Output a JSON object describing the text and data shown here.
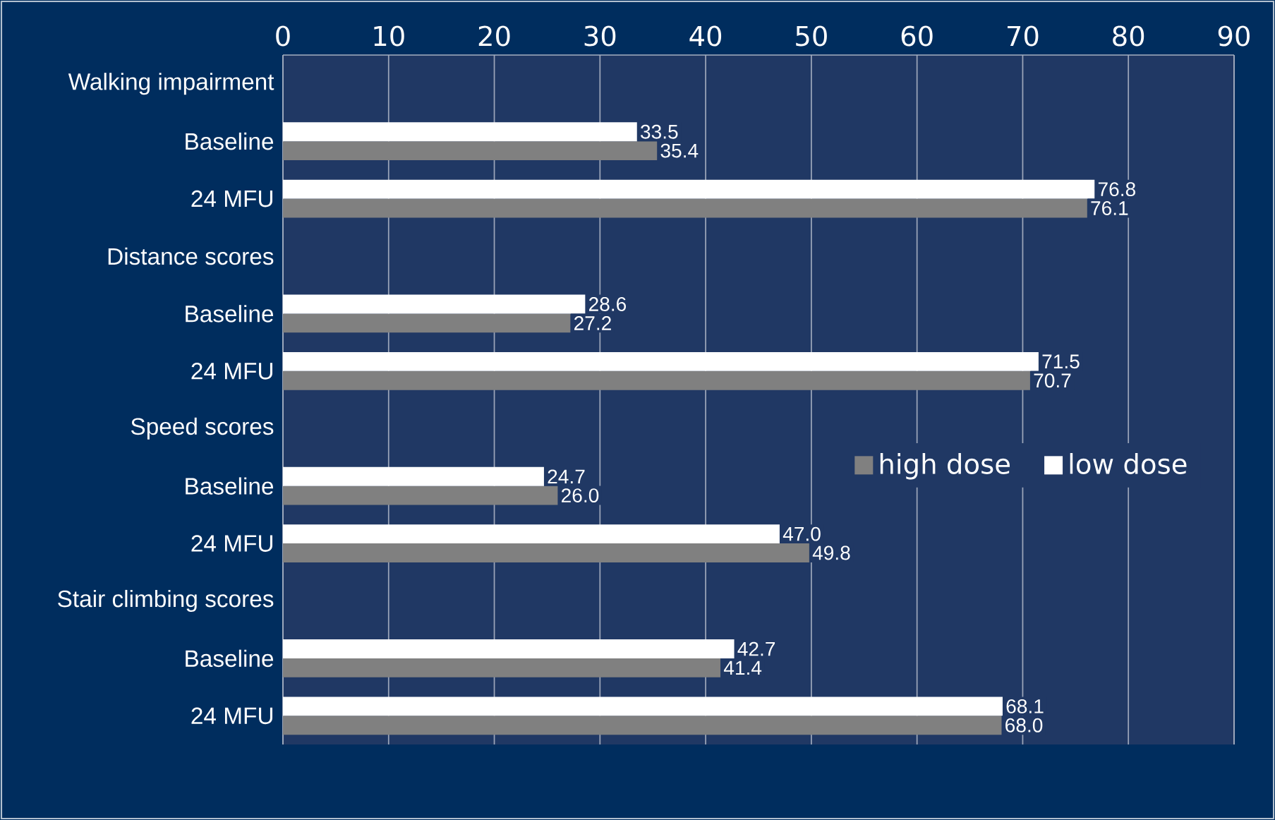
{
  "chart_data": {
    "type": "bar",
    "orientation": "horizontal",
    "categories": [
      "Walking impairment",
      "Baseline",
      "24 MFU",
      "Distance scores",
      "Baseline",
      "24 MFU",
      "Speed scores",
      "Baseline",
      "24 MFU",
      "Stair climbing scores",
      "Baseline",
      "24 MFU"
    ],
    "series": [
      {
        "name": "high dose",
        "color": "#808080",
        "values": [
          null,
          35.4,
          76.1,
          null,
          27.2,
          70.7,
          null,
          26.0,
          49.8,
          null,
          41.4,
          68.0
        ],
        "value_labels": [
          null,
          "35.4",
          "76.1",
          null,
          "27.2",
          "70.7",
          null,
          "26.0",
          "49.8",
          null,
          "41.4",
          "68.0"
        ]
      },
      {
        "name": "low dose",
        "color": "#ffffff",
        "values": [
          null,
          33.5,
          76.8,
          null,
          28.6,
          71.5,
          null,
          24.7,
          47.0,
          null,
          42.7,
          68.1
        ],
        "value_labels": [
          null,
          "33.5",
          "76.8",
          null,
          "28.6",
          "71.5",
          null,
          "24.7",
          "47.0",
          null,
          "42.7",
          "68.1"
        ]
      }
    ],
    "xlim": [
      0,
      90
    ],
    "xticks": [
      0,
      10,
      20,
      30,
      40,
      50,
      60,
      70,
      80,
      90
    ],
    "grid": "x",
    "legend": "right"
  }
}
